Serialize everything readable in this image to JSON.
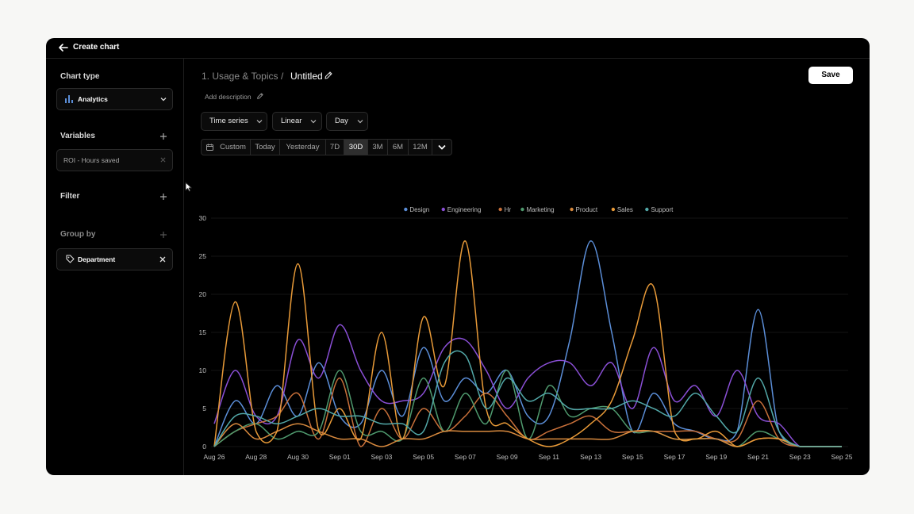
{
  "topbar": {
    "title": "Create chart"
  },
  "sidebar": {
    "chart_type_label": "Chart type",
    "chart_type_value": "Analytics",
    "variables_label": "Variables",
    "variable_value": "ROI - Hours saved",
    "filter_label": "Filter",
    "group_by_label": "Group by",
    "group_by_value": "Department"
  },
  "header": {
    "breadcrumb_parent": "1. Usage & Topics",
    "breadcrumb_sep": "/",
    "breadcrumb_current": "Untitled",
    "add_description": "Add description",
    "save_label": "Save"
  },
  "controls": {
    "chart_mode": "Time series",
    "scale": "Linear",
    "interval": "Day",
    "ranges": [
      "Custom",
      "Today",
      "Yesterday",
      "7D",
      "30D",
      "3M",
      "6M",
      "12M"
    ],
    "active_range": "30D"
  },
  "colors": {
    "Design": "#5b8ed8",
    "Engineering": "#8a4fd6",
    "Hr": "#c8703a",
    "Marketing": "#4f9a6e",
    "Product": "#d98a3e",
    "Sales": "#e89a38",
    "Support": "#52a8a8"
  },
  "chart_data": {
    "type": "line",
    "x": [
      "Aug 26",
      "Aug 27",
      "Aug 28",
      "Aug 29",
      "Aug 30",
      "Aug 31",
      "Sep 01",
      "Sep 02",
      "Sep 03",
      "Sep 04",
      "Sep 05",
      "Sep 06",
      "Sep 07",
      "Sep 08",
      "Sep 09",
      "Sep 10",
      "Sep 11",
      "Sep 12",
      "Sep 13",
      "Sep 14",
      "Sep 15",
      "Sep 16",
      "Sep 17",
      "Sep 18",
      "Sep 19",
      "Sep 20",
      "Sep 21",
      "Sep 22",
      "Sep 23",
      "Sep 24",
      "Sep 25"
    ],
    "xticks": [
      "Aug 26",
      "Aug 28",
      "Aug 30",
      "Sep 01",
      "Sep 03",
      "Sep 05",
      "Sep 07",
      "Sep 09",
      "Sep 11",
      "Sep 13",
      "Sep 15",
      "Sep 17",
      "Sep 19",
      "Sep 21",
      "Sep 23",
      "Sep 25"
    ],
    "ylim": [
      0,
      30
    ],
    "yticks": [
      0,
      5,
      10,
      15,
      20,
      25,
      30
    ],
    "grid": true,
    "legend_position": "top-center",
    "series": [
      {
        "name": "Design",
        "values": [
          0,
          6,
          3,
          8,
          4,
          11,
          4,
          3,
          10,
          4,
          13,
          6,
          9,
          7,
          10,
          4,
          4,
          14,
          27,
          15,
          2,
          7,
          3,
          2,
          1,
          2,
          18,
          2,
          0,
          0,
          0
        ]
      },
      {
        "name": "Engineering",
        "values": [
          3,
          10,
          4,
          4,
          14,
          9,
          16,
          10,
          6,
          6,
          7,
          13,
          14,
          10,
          5,
          9,
          11,
          11,
          8,
          11,
          5,
          13,
          6,
          8,
          4,
          10,
          4,
          3,
          0,
          0,
          0
        ]
      },
      {
        "name": "Hr",
        "values": [
          0,
          2,
          3,
          4,
          7,
          1,
          9,
          0,
          5,
          1,
          5,
          2,
          4,
          7,
          4,
          1,
          2,
          3,
          4,
          2,
          2,
          2,
          2,
          2,
          1,
          1,
          6,
          1,
          0,
          0,
          0
        ]
      },
      {
        "name": "Marketing",
        "values": [
          0,
          2,
          3,
          1,
          2,
          2,
          10,
          2,
          2,
          1,
          9,
          2,
          7,
          3,
          10,
          1,
          8,
          4,
          5,
          5,
          2,
          2,
          1,
          1,
          1,
          0,
          2,
          1,
          0,
          0,
          0
        ]
      },
      {
        "name": "Product",
        "values": [
          0,
          3,
          1,
          2,
          3,
          2,
          1,
          1,
          0,
          1,
          1,
          2,
          2,
          2,
          2,
          1,
          1,
          1,
          1,
          1,
          2,
          2,
          1,
          1,
          1,
          0,
          1,
          1,
          0,
          0,
          0
        ]
      },
      {
        "name": "Sales",
        "values": [
          0,
          19,
          2,
          2,
          24,
          2,
          5,
          1,
          15,
          1,
          17,
          8,
          27,
          5,
          3,
          1,
          0,
          1,
          3,
          6,
          14,
          21,
          2,
          1,
          2,
          0,
          1,
          1,
          0,
          0,
          0
        ]
      },
      {
        "name": "Support",
        "values": [
          0,
          4,
          4,
          3,
          4,
          5,
          4,
          4,
          3,
          3,
          2,
          11,
          12,
          5,
          9,
          6,
          7,
          5,
          5,
          5,
          6,
          5,
          4,
          7,
          4,
          2,
          9,
          2,
          0,
          0,
          0
        ]
      }
    ]
  }
}
